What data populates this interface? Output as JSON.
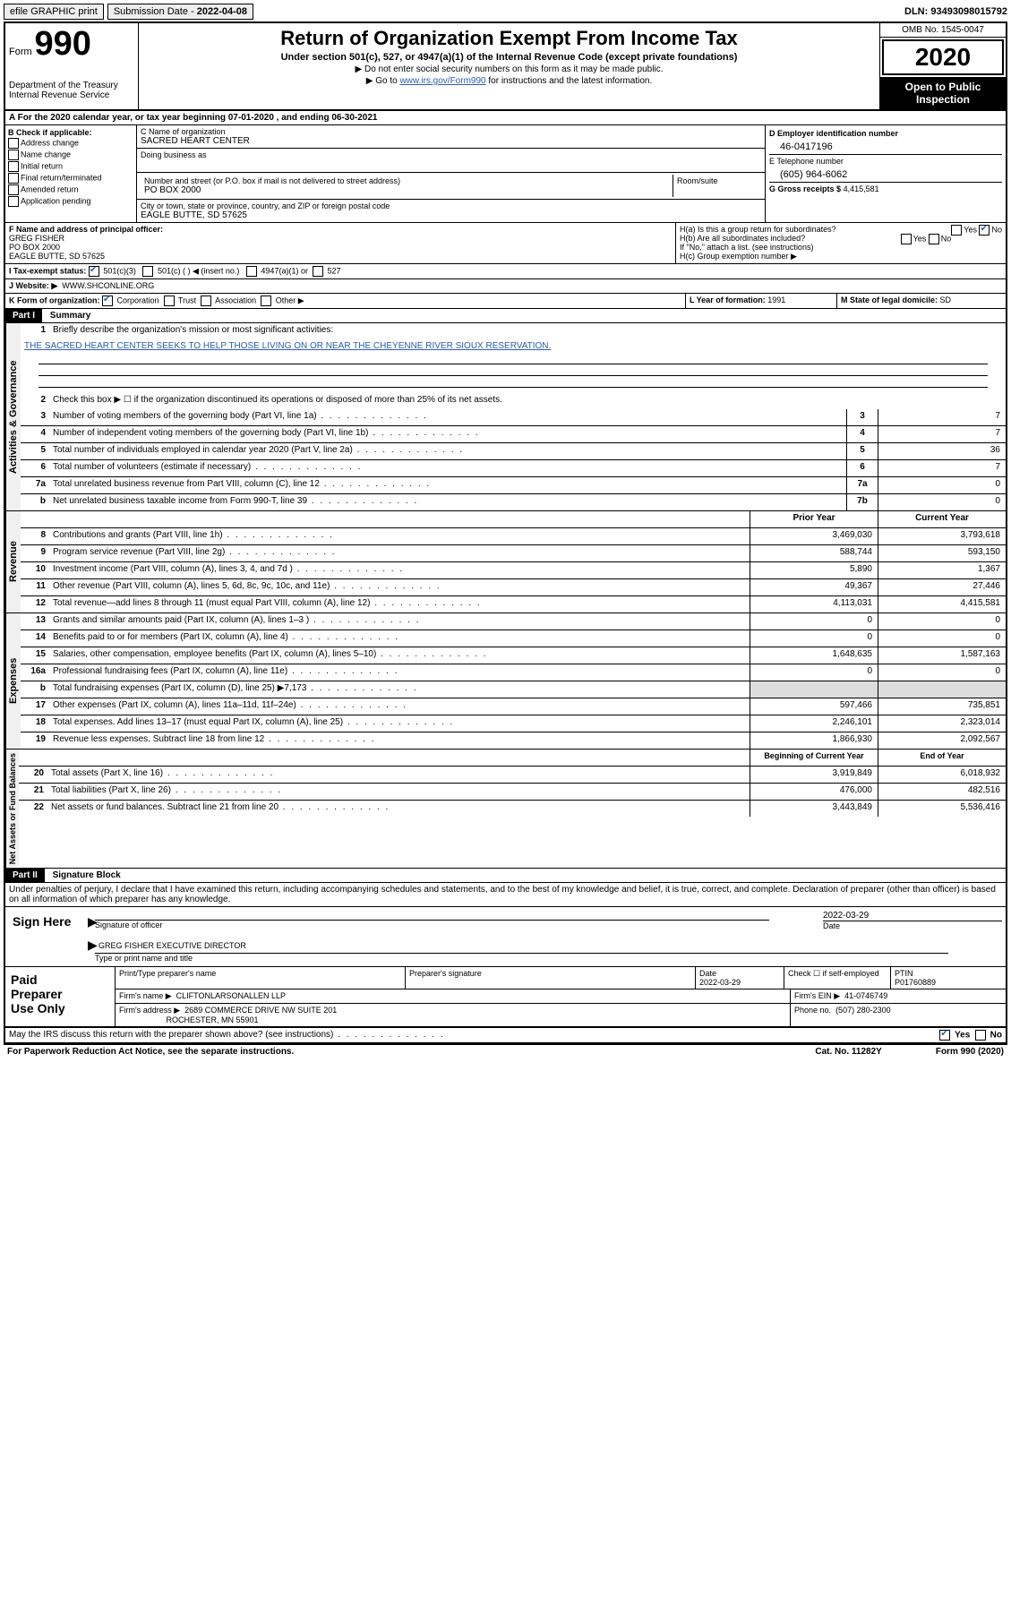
{
  "topbar": {
    "efile": "efile GRAPHIC print",
    "sub_label": "Submission Date - ",
    "sub_date": "2022-04-08",
    "dln_label": "DLN:",
    "dln": "93493098015792"
  },
  "header": {
    "form_word": "Form",
    "form_no": "990",
    "dept1": "Department of the Treasury",
    "dept2": "Internal Revenue Service",
    "title": "Return of Organization Exempt From Income Tax",
    "subtitle": "Under section 501(c), 527, or 4947(a)(1) of the Internal Revenue Code (except private foundations)",
    "instr1": "▶ Do not enter social security numbers on this form as it may be made public.",
    "instr2_pre": "▶ Go to ",
    "instr2_link": "www.irs.gov/Form990",
    "instr2_post": " for instructions and the latest information.",
    "omb": "OMB No. 1545-0047",
    "year": "2020",
    "open1": "Open to Public",
    "open2": "Inspection"
  },
  "rowA": {
    "text_pre": "A For the 2020 calendar year, or tax year beginning ",
    "begin": "07-01-2020",
    "text_mid": ", and ending ",
    "end": "06-30-2021"
  },
  "colB": {
    "header": "B Check if applicable:",
    "opt1": "Address change",
    "opt2": "Name change",
    "opt3": "Initial return",
    "opt4": "Final return/terminated",
    "opt5": "Amended return",
    "opt6": "Application pending"
  },
  "colC": {
    "name_label": "C Name of organization",
    "name": "SACRED HEART CENTER",
    "dba_label": "Doing business as",
    "addr_label": "Number and street (or P.O. box if mail is not delivered to street address)",
    "suite_label": "Room/suite",
    "addr": "PO BOX 2000",
    "city_label": "City or town, state or province, country, and ZIP or foreign postal code",
    "city": "EAGLE BUTTE, SD  57625"
  },
  "colD": {
    "ein_label": "D Employer identification number",
    "ein": "46-0417196",
    "tel_label": "E Telephone number",
    "tel": "(605) 964-6062",
    "gross_label": "G Gross receipts $",
    "gross": "4,415,581"
  },
  "rowF": {
    "label": "F Name and address of principal officer:",
    "name": "GREG FISHER",
    "addr1": "PO BOX 2000",
    "addr2": "EAGLE BUTTE, SD  57625"
  },
  "rowH": {
    "ha": "H(a)  Is this a group return for subordinates?",
    "hb": "H(b)  Are all subordinates included?",
    "hb_note": "If \"No,\" attach a list. (see instructions)",
    "hc": "H(c)  Group exemption number ▶",
    "yes": "Yes",
    "no": "No"
  },
  "rowI": {
    "label": "I  Tax-exempt status:",
    "o1": "501(c)(3)",
    "o2": "501(c) (   ) ◀ (insert no.)",
    "o3": "4947(a)(1) or",
    "o4": "527"
  },
  "rowJ": {
    "label": "J  Website: ▶",
    "val": "WWW.SHCONLINE.ORG"
  },
  "rowK": {
    "label": "K Form of organization:",
    "o1": "Corporation",
    "o2": "Trust",
    "o3": "Association",
    "o4": "Other ▶"
  },
  "rowL": {
    "label": "L Year of formation:",
    "val": "1991"
  },
  "rowM": {
    "label": "M State of legal domicile:",
    "val": "SD"
  },
  "part1": {
    "label": "Part I",
    "title": "Summary",
    "q1": "Briefly describe the organization's mission or most significant activities:",
    "mission": "THE SACRED HEART CENTER SEEKS TO HELP THOSE LIVING ON OR NEAR THE CHEYENNE RIVER SIOUX RESERVATION.",
    "q2": "Check this box ▶ ☐  if the organization discontinued its operations or disposed of more than 25% of its net assets."
  },
  "side_labels": {
    "gov": "Activities & Governance",
    "rev": "Revenue",
    "exp": "Expenses",
    "net": "Net Assets or Fund Balances"
  },
  "gov_lines": [
    {
      "n": "3",
      "t": "Number of voting members of the governing body (Part VI, line 1a)",
      "box": "3",
      "v": "7"
    },
    {
      "n": "4",
      "t": "Number of independent voting members of the governing body (Part VI, line 1b)",
      "box": "4",
      "v": "7"
    },
    {
      "n": "5",
      "t": "Total number of individuals employed in calendar year 2020 (Part V, line 2a)",
      "box": "5",
      "v": "36"
    },
    {
      "n": "6",
      "t": "Total number of volunteers (estimate if necessary)",
      "box": "6",
      "v": "7"
    },
    {
      "n": "7a",
      "t": "Total unrelated business revenue from Part VIII, column (C), line 12",
      "box": "7a",
      "v": "0"
    },
    {
      "n": "b",
      "t": "Net unrelated business taxable income from Form 990-T, line 39",
      "box": "7b",
      "v": "0"
    }
  ],
  "two_col_header": {
    "prior": "Prior Year",
    "curr": "Current Year"
  },
  "rev_lines": [
    {
      "n": "8",
      "t": "Contributions and grants (Part VIII, line 1h)",
      "p": "3,469,030",
      "c": "3,793,618"
    },
    {
      "n": "9",
      "t": "Program service revenue (Part VIII, line 2g)",
      "p": "588,744",
      "c": "593,150"
    },
    {
      "n": "10",
      "t": "Investment income (Part VIII, column (A), lines 3, 4, and 7d )",
      "p": "5,890",
      "c": "1,367"
    },
    {
      "n": "11",
      "t": "Other revenue (Part VIII, column (A), lines 5, 6d, 8c, 9c, 10c, and 11e)",
      "p": "49,367",
      "c": "27,446"
    },
    {
      "n": "12",
      "t": "Total revenue—add lines 8 through 11 (must equal Part VIII, column (A), line 12)",
      "p": "4,113,031",
      "c": "4,415,581"
    }
  ],
  "exp_lines": [
    {
      "n": "13",
      "t": "Grants and similar amounts paid (Part IX, column (A), lines 1–3 )",
      "p": "0",
      "c": "0"
    },
    {
      "n": "14",
      "t": "Benefits paid to or for members (Part IX, column (A), line 4)",
      "p": "0",
      "c": "0"
    },
    {
      "n": "15",
      "t": "Salaries, other compensation, employee benefits (Part IX, column (A), lines 5–10)",
      "p": "1,648,635",
      "c": "1,587,163"
    },
    {
      "n": "16a",
      "t": "Professional fundraising fees (Part IX, column (A), line 11e)",
      "p": "0",
      "c": "0"
    },
    {
      "n": "b",
      "t": "Total fundraising expenses (Part IX, column (D), line 25) ▶7,173",
      "p": "",
      "c": ""
    },
    {
      "n": "17",
      "t": "Other expenses (Part IX, column (A), lines 11a–11d, 11f–24e)",
      "p": "597,466",
      "c": "735,851"
    },
    {
      "n": "18",
      "t": "Total expenses. Add lines 13–17 (must equal Part IX, column (A), line 25)",
      "p": "2,246,101",
      "c": "2,323,014"
    },
    {
      "n": "19",
      "t": "Revenue less expenses. Subtract line 18 from line 12",
      "p": "1,866,930",
      "c": "2,092,567"
    }
  ],
  "net_header": {
    "begin": "Beginning of Current Year",
    "end": "End of Year"
  },
  "net_lines": [
    {
      "n": "20",
      "t": "Total assets (Part X, line 16)",
      "p": "3,919,849",
      "c": "6,018,932"
    },
    {
      "n": "21",
      "t": "Total liabilities (Part X, line 26)",
      "p": "476,000",
      "c": "482,516"
    },
    {
      "n": "22",
      "t": "Net assets or fund balances. Subtract line 21 from line 20",
      "p": "3,443,849",
      "c": "5,536,416"
    }
  ],
  "part2": {
    "label": "Part II",
    "title": "Signature Block",
    "penalty": "Under penalties of perjury, I declare that I have examined this return, including accompanying schedules and statements, and to the best of my knowledge and belief, it is true, correct, and complete. Declaration of preparer (other than officer) is based on all information of which preparer has any knowledge."
  },
  "sign": {
    "here": "Sign Here",
    "sig_officer": "Signature of officer",
    "date_label": "Date",
    "date": "2022-03-29",
    "name": "GREG FISHER  EXECUTIVE DIRECTOR",
    "name_label": "Type or print name and title"
  },
  "paid": {
    "title1": "Paid",
    "title2": "Preparer",
    "title3": "Use Only",
    "h1": "Print/Type preparer's name",
    "h2": "Preparer's signature",
    "h3_label": "Date",
    "h3": "2022-03-29",
    "h4": "Check ☐ if self-employed",
    "h5_label": "PTIN",
    "h5": "P01760889",
    "firm_label": "Firm's name    ▶",
    "firm": "CLIFTONLARSONALLEN LLP",
    "ein_label": "Firm's EIN ▶",
    "ein": "41-0746749",
    "addr_label": "Firm's address ▶",
    "addr1": "2689 COMMERCE DRIVE NW SUITE 201",
    "addr2": "ROCHESTER, MN  55901",
    "phone_label": "Phone no.",
    "phone": "(507) 280-2300"
  },
  "footer": {
    "discuss": "May the IRS discuss this return with the preparer shown above? (see instructions)",
    "yes": "Yes",
    "no": "No",
    "paperwork": "For Paperwork Reduction Act Notice, see the separate instructions.",
    "cat": "Cat. No. 11282Y",
    "formref": "Form 990 (2020)"
  }
}
